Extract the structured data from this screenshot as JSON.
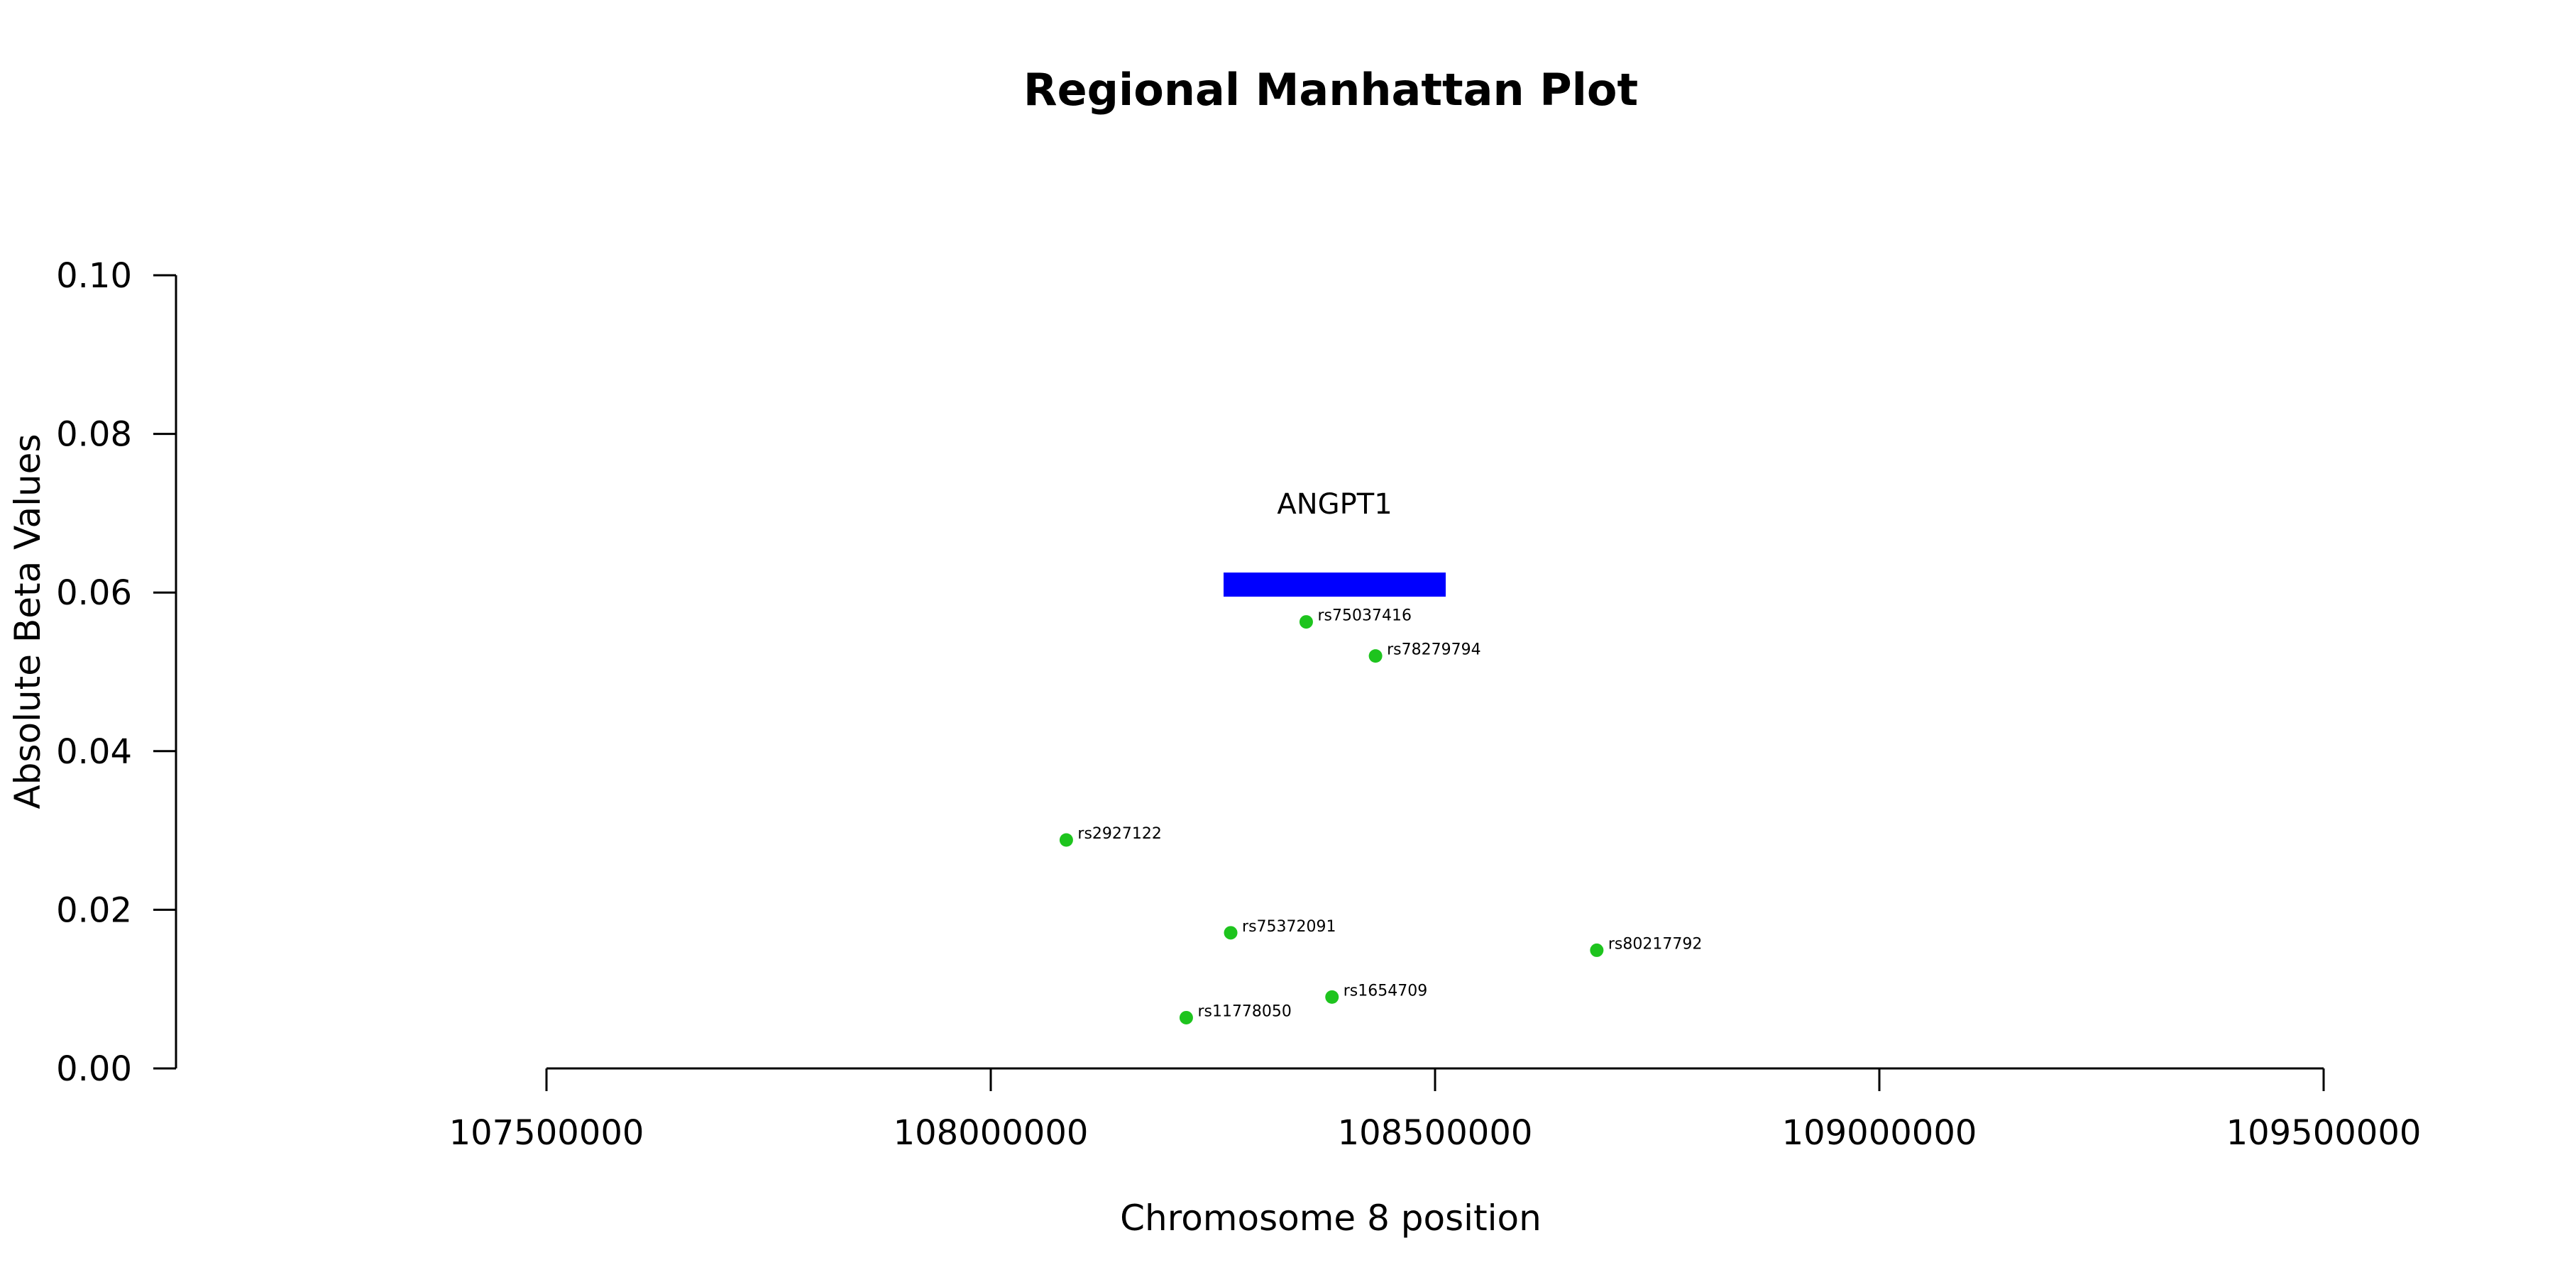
{
  "chart_data": {
    "type": "scatter",
    "title": "Regional Manhattan Plot",
    "xlabel": "Chromosome 8 position",
    "ylabel": "Absolute Beta Values",
    "xlim": [
      107500000,
      109500000
    ],
    "ylim": [
      0,
      0.1
    ],
    "x_ticks": [
      107500000,
      108000000,
      108500000,
      109000000,
      109500000
    ],
    "y_ticks": [
      0.0,
      0.02,
      0.04,
      0.06,
      0.08,
      0.1
    ],
    "x_tick_labels": [
      "107500000",
      "108000000",
      "108500000",
      "109000000",
      "109500000"
    ],
    "y_tick_labels": [
      "0.00",
      "0.02",
      "0.04",
      "0.06",
      "0.08",
      "0.10"
    ],
    "grid": false,
    "point_color": "#1ec41e",
    "gene_color": "#0000ff",
    "genes": [
      {
        "name": "ANGPT1",
        "start": 108262000,
        "end": 108512000,
        "y": 0.061
      }
    ],
    "points": [
      {
        "label": "rs75037416",
        "x": 108355000,
        "y": 0.0563
      },
      {
        "label": "rs78279794",
        "x": 108433000,
        "y": 0.052
      },
      {
        "label": "rs2927122",
        "x": 108085000,
        "y": 0.0288
      },
      {
        "label": "rs75372091",
        "x": 108270000,
        "y": 0.0171
      },
      {
        "label": "rs80217792",
        "x": 108682000,
        "y": 0.0149
      },
      {
        "label": "rs1654709",
        "x": 108384000,
        "y": 0.009
      },
      {
        "label": "rs11778050",
        "x": 108220000,
        "y": 0.0064
      }
    ]
  }
}
